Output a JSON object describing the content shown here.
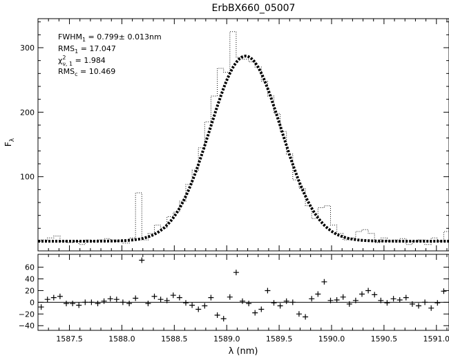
{
  "chart_data": [
    {
      "type": "line",
      "title": "ErbBX660_05007",
      "xlabel": "λ (nm)",
      "ylabel": "Fλ",
      "xlim": [
        1587.2,
        1591.12
      ],
      "ylim": [
        -15,
        345
      ],
      "x_ticks": [
        1587.5,
        1588.0,
        1588.5,
        1589.0,
        1589.5,
        1590.0,
        1590.5,
        1591.0
      ],
      "x_tick_labels": [
        "1587.5",
        "1588.0",
        "1588.5",
        "1589.0",
        "1589.5",
        "1590.0",
        "1590.5",
        "1591.0"
      ],
      "y_ticks": [
        100,
        200,
        300
      ],
      "y_tick_labels": [
        "100",
        "200",
        "300"
      ],
      "grid": false,
      "annotations": {
        "line1": "FWHM1 =   0.799± 0.013nm",
        "line2": "RMS1 = 17.047",
        "line3": "χ²ν,1 =    1.984",
        "line4": "RMSc = 10.469"
      },
      "series": [
        {
          "style": "dotted-step",
          "x": [
            1587.2,
            1587.26,
            1587.32,
            1587.38,
            1587.44,
            1587.5,
            1587.56,
            1587.62,
            1587.68,
            1587.74,
            1587.8,
            1587.86,
            1587.92,
            1587.98,
            1588.04,
            1588.1,
            1588.16,
            1588.22,
            1588.28,
            1588.34,
            1588.4,
            1588.46,
            1588.52,
            1588.58,
            1588.64,
            1588.7,
            1588.76,
            1588.82,
            1588.88,
            1588.94,
            1589.0,
            1589.06,
            1589.12,
            1589.18,
            1589.24,
            1589.3,
            1589.36,
            1589.42,
            1589.48,
            1589.54,
            1589.6,
            1589.66,
            1589.72,
            1589.78,
            1589.84,
            1589.9,
            1589.96,
            1590.02,
            1590.08,
            1590.14,
            1590.2,
            1590.26,
            1590.32,
            1590.38,
            1590.44,
            1590.5,
            1590.56,
            1590.62,
            1590.68,
            1590.74,
            1590.8,
            1590.86,
            1590.92,
            1590.98,
            1591.04,
            1591.1
          ],
          "y": [
            0,
            2,
            5,
            8,
            0,
            -2,
            0,
            -5,
            2,
            0,
            2,
            4,
            2,
            0,
            -3,
            5,
            75,
            2,
            12,
            25,
            20,
            38,
            45,
            62,
            88,
            110,
            145,
            185,
            225,
            268,
            262,
            325,
            285,
            282,
            278,
            270,
            248,
            225,
            198,
            170,
            135,
            95,
            82,
            55,
            35,
            52,
            55,
            25,
            12,
            2,
            5,
            15,
            18,
            12,
            -2,
            5,
            0,
            2,
            4,
            -5,
            0,
            2,
            -5,
            5,
            0,
            15
          ]
        },
        {
          "style": "dashed-gaussian-fit",
          "peak_center": 1589.18,
          "amplitude": 287,
          "fwhm": 0.799,
          "baseline": 0
        }
      ]
    },
    {
      "type": "scatter",
      "xlabel": "λ (nm)",
      "ylim": [
        -48,
        82
      ],
      "y_ticks": [
        -40,
        -20,
        0,
        20,
        40,
        60
      ],
      "y_tick_labels": [
        "−40",
        "−20",
        "0",
        "20",
        "40",
        "60"
      ],
      "zero_line": true,
      "marker": "+",
      "x": [
        1587.23,
        1587.29,
        1587.35,
        1587.41,
        1587.47,
        1587.53,
        1587.59,
        1587.65,
        1587.71,
        1587.77,
        1587.83,
        1587.89,
        1587.95,
        1588.01,
        1588.07,
        1588.13,
        1588.19,
        1588.25,
        1588.31,
        1588.37,
        1588.43,
        1588.49,
        1588.55,
        1588.61,
        1588.67,
        1588.73,
        1588.79,
        1588.85,
        1588.91,
        1588.97,
        1589.03,
        1589.09,
        1589.15,
        1589.21,
        1589.27,
        1589.33,
        1589.39,
        1589.45,
        1589.51,
        1589.57,
        1589.63,
        1589.69,
        1589.75,
        1589.81,
        1589.87,
        1589.93,
        1589.99,
        1590.05,
        1590.11,
        1590.17,
        1590.23,
        1590.29,
        1590.35,
        1590.41,
        1590.47,
        1590.53,
        1590.59,
        1590.65,
        1590.71,
        1590.77,
        1590.83,
        1590.89,
        1590.95,
        1591.01,
        1591.07
      ],
      "y": [
        -8,
        5,
        8,
        10,
        -2,
        -2,
        -5,
        0,
        0,
        -2,
        2,
        6,
        5,
        0,
        -2,
        7,
        72,
        -2,
        10,
        5,
        3,
        12,
        8,
        -1,
        -5,
        -12,
        -6,
        8,
        -22,
        -28,
        9,
        51,
        2,
        -2,
        -18,
        -12,
        20,
        -1,
        -6,
        2,
        0,
        -20,
        -25,
        6,
        14,
        35,
        3,
        4,
        9,
        -3,
        3,
        14,
        20,
        13,
        3,
        -1,
        6,
        4,
        8,
        -3,
        -6,
        0,
        -10,
        -1,
        19
      ]
    }
  ]
}
